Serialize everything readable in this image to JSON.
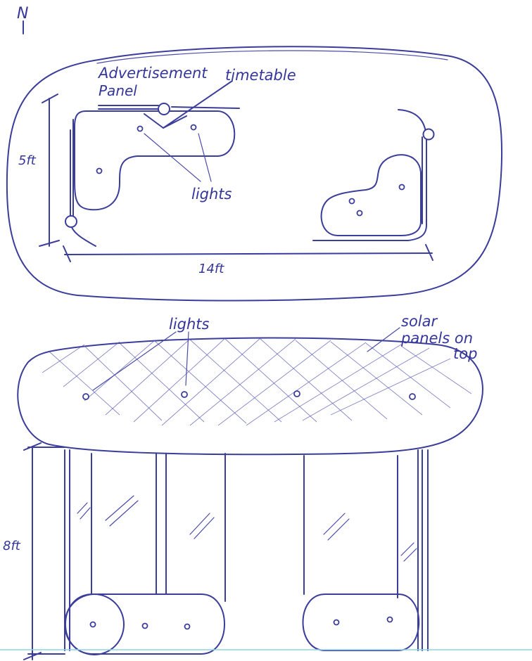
{
  "compass": {
    "letter": "N"
  },
  "plan_view": {
    "labels": {
      "advertisement": "Advertisement",
      "panel": "Panel",
      "timetable": "timetable",
      "lights": "lights"
    },
    "dimensions": {
      "width": "5ft",
      "length": "14ft"
    }
  },
  "elevation_view": {
    "labels": {
      "lights": "lights",
      "solar_line1": "solar",
      "solar_line2": "panels on",
      "solar_line3": "top"
    },
    "dimensions": {
      "height": "8ft"
    }
  },
  "colors": {
    "ink": "#3b3d9a",
    "paper": "#ffffff"
  }
}
